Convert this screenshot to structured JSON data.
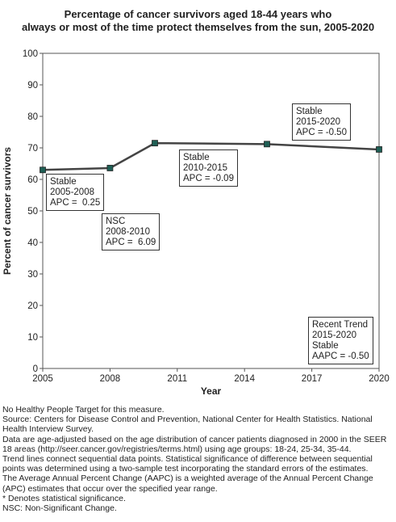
{
  "title": {
    "line1": "Percentage of cancer survivors aged 18-44 years who",
    "line2": "always or most of the time protect themselves from the sun, 2005-2020"
  },
  "colors": {
    "line": "#444444",
    "marker": "#1f5f55",
    "axis": "#555555"
  },
  "chart_data": {
    "type": "line",
    "xlabel": "Year",
    "ylabel": "Percent of cancer survivors",
    "xlim": [
      2005,
      2020
    ],
    "ylim": [
      0,
      100
    ],
    "x_ticks": [
      2005,
      2008,
      2011,
      2014,
      2017,
      2020
    ],
    "y_ticks": [
      0,
      10,
      20,
      30,
      40,
      50,
      60,
      70,
      80,
      90,
      100
    ],
    "grid": false,
    "series": [
      {
        "x": [
          2005,
          2008,
          2010,
          2015,
          2020
        ],
        "y": [
          63.0,
          63.6,
          71.5,
          71.2,
          69.5
        ]
      }
    ],
    "segments": [
      {
        "lines": [
          "Stable",
          "2005-2008",
          "APC =  0.25"
        ]
      },
      {
        "lines": [
          "NSC",
          "2008-2010",
          "APC =  6.09"
        ]
      },
      {
        "lines": [
          "Stable",
          "2010-2015",
          "APC = -0.09"
        ]
      },
      {
        "lines": [
          "Stable",
          "2015-2020",
          "APC = -0.50"
        ]
      },
      {
        "lines": [
          "Recent Trend",
          "2015-2020",
          "Stable",
          "AAPC = -0.50"
        ]
      }
    ]
  },
  "footnotes": [
    "No Healthy People Target for this measure.",
    "Source: Centers for Disease Control and Prevention, National Center for Health Statistics. National Health Interview Survey.",
    "Data are age-adjusted based on the age distribution of cancer patients diagnosed in 2000 in the SEER 18 areas (http://seer.cancer.gov/registries/terms.html) using age groups: 18-24, 25-34, 35-44.",
    "Trend lines connect sequential data points. Statistical significance of difference between sequential points was determined using a two-sample test incorporating the standard errors of the estimates.",
    "The Average Annual Percent Change (AAPC) is a weighted average of the Annual Percent Change (APC) estimates that occur over the specified year range.",
    "* Denotes statistical significance.",
    "NSC: Non-Significant Change."
  ]
}
